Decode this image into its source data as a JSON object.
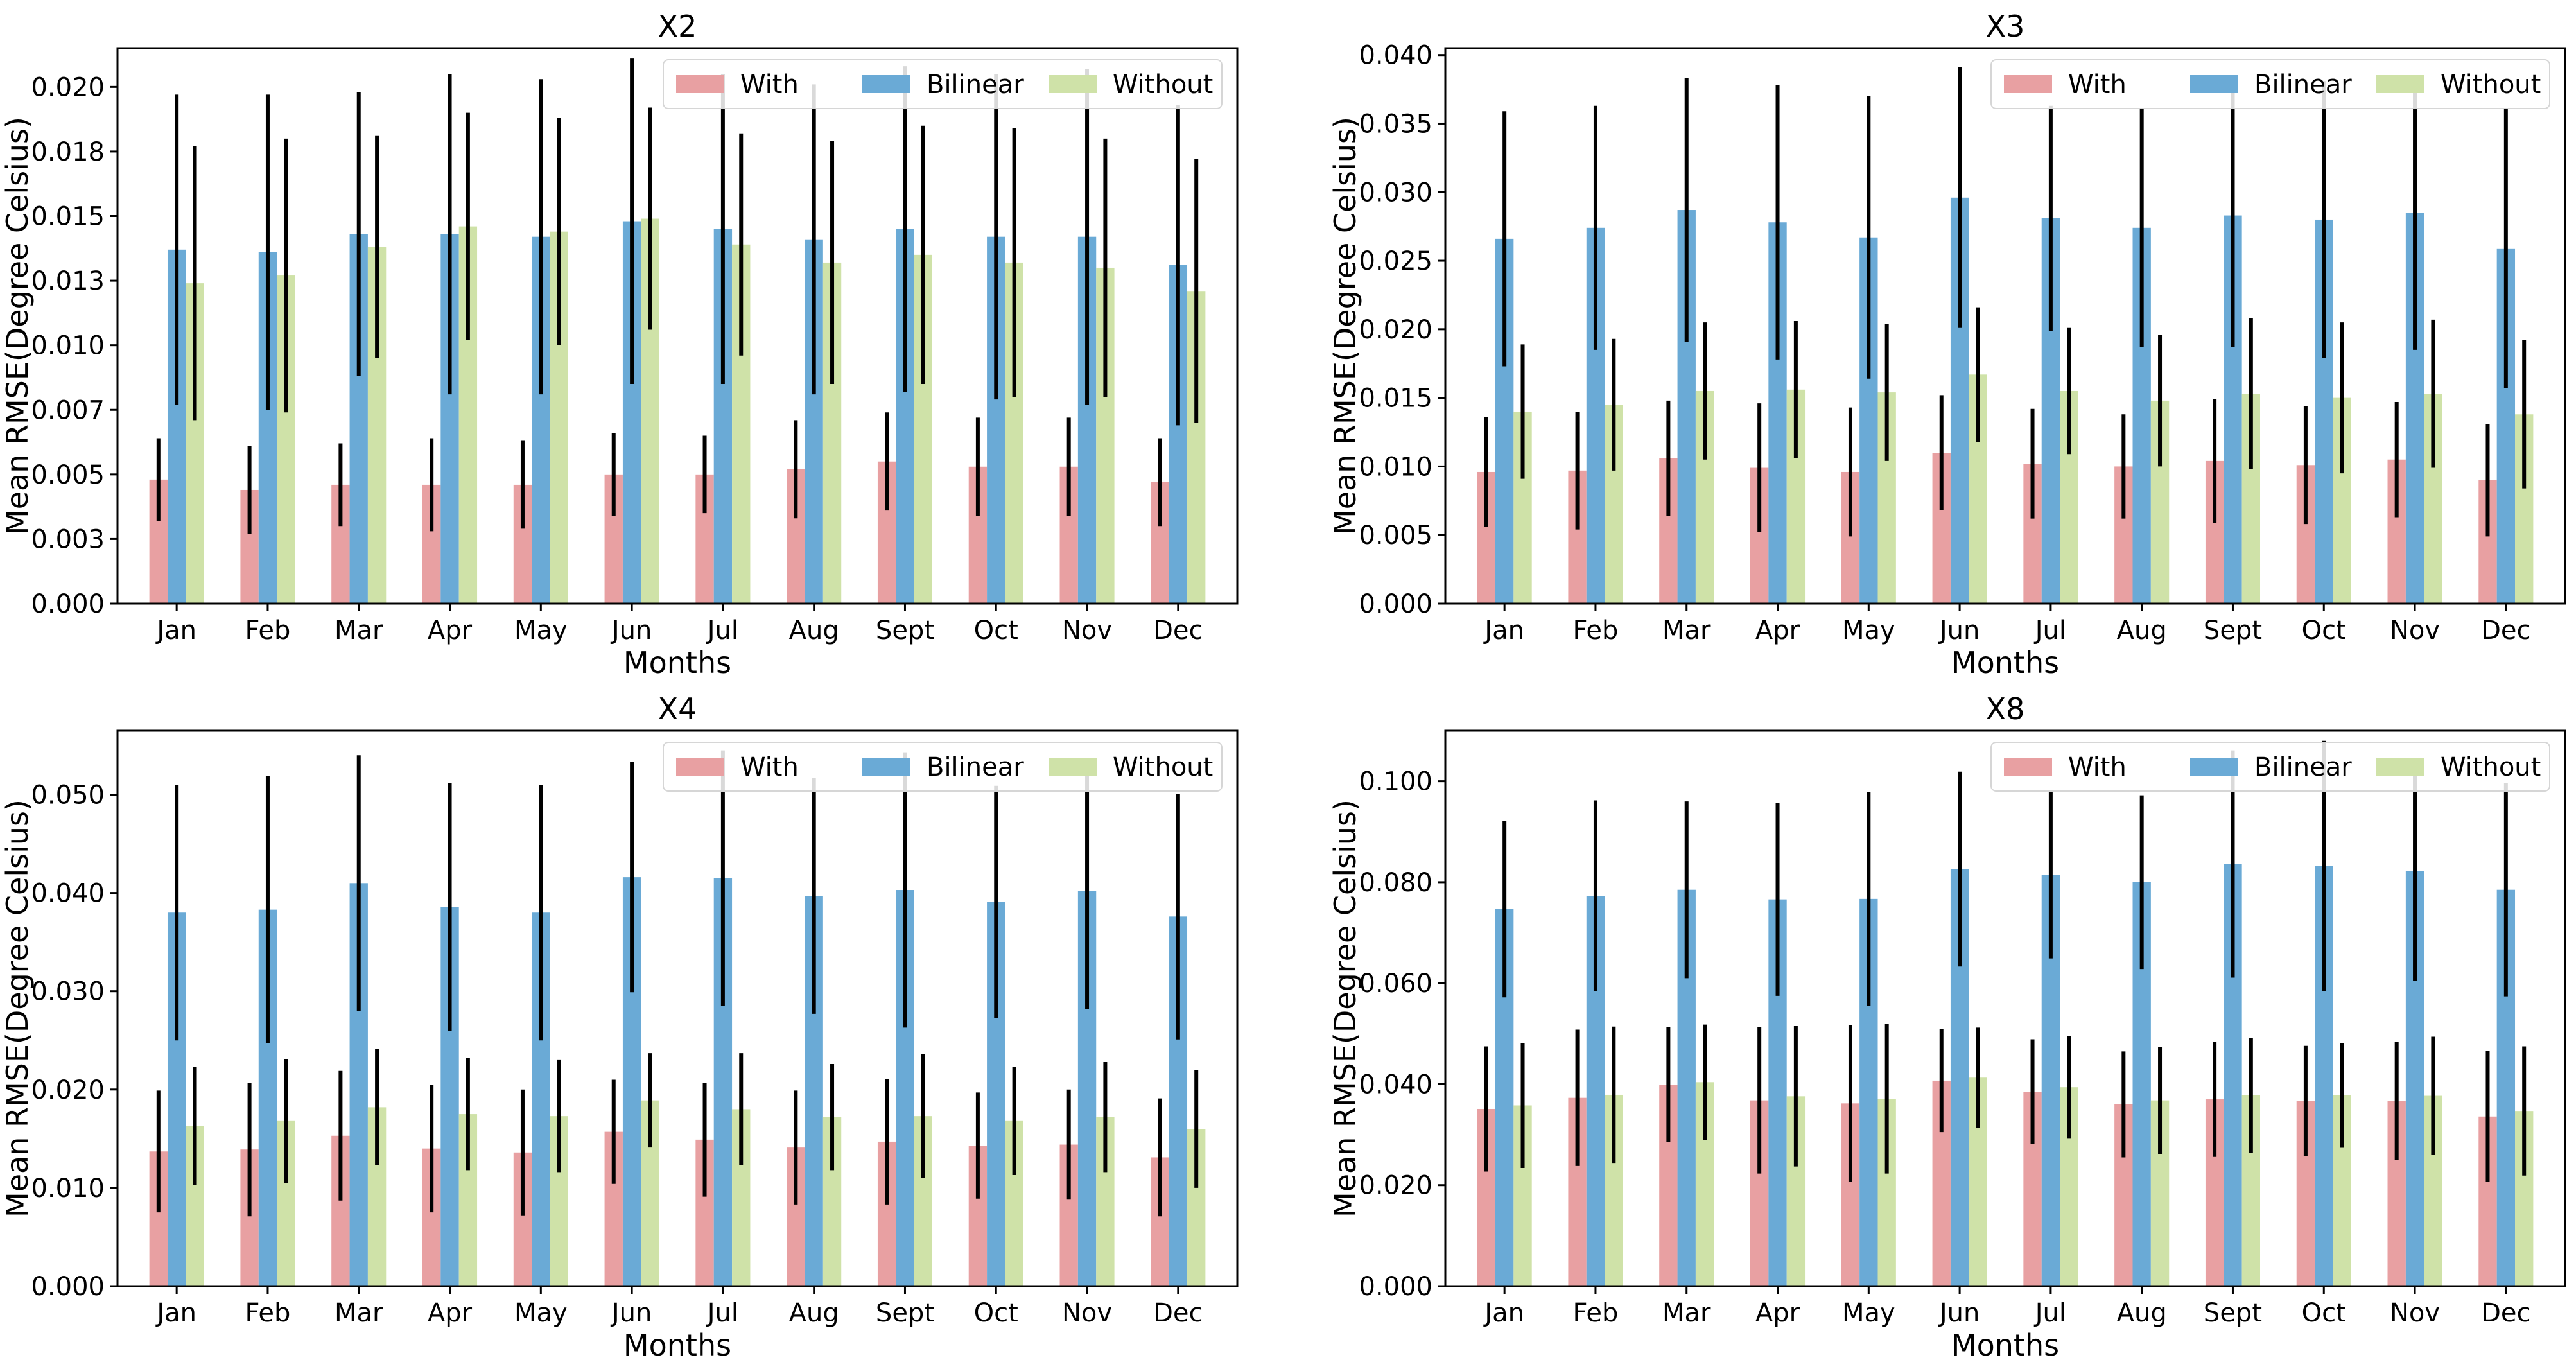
{
  "colors": {
    "With": "#e8a0a2",
    "Bilinear": "#6aaad6",
    "Without": "#cfe2a8",
    "errorbar": "#000000"
  },
  "chart_data": [
    {
      "type": "bar",
      "title": "X2",
      "xlabel": "Months",
      "ylabel": "Mean RMSE(Degree Celsius)",
      "ylim": [
        0,
        0.0215
      ],
      "yticks": [
        "0.000",
        "0.003",
        "0.005",
        "0.007",
        "0.010",
        "0.013",
        "0.015",
        "0.018",
        "0.020"
      ],
      "ytick_values": [
        0,
        0.0025,
        0.005,
        0.0075,
        0.01,
        0.0125,
        0.015,
        0.0175,
        0.02
      ],
      "legend_position": "top-right",
      "categories": [
        "Jan",
        "Feb",
        "Mar",
        "Apr",
        "May",
        "Jun",
        "Jul",
        "Aug",
        "Sept",
        "Oct",
        "Nov",
        "Dec"
      ],
      "series": [
        {
          "name": "With",
          "values": [
            0.0048,
            0.0044,
            0.0046,
            0.0046,
            0.0046,
            0.005,
            0.005,
            0.0052,
            0.0055,
            0.0053,
            0.0053,
            0.0047
          ],
          "errors": [
            0.0016,
            0.0017,
            0.0016,
            0.0018,
            0.0017,
            0.0016,
            0.0015,
            0.0019,
            0.0019,
            0.0019,
            0.0019,
            0.0017
          ]
        },
        {
          "name": "Bilinear",
          "values": [
            0.0137,
            0.0136,
            0.0143,
            0.0143,
            0.0142,
            0.0148,
            0.0145,
            0.0141,
            0.0145,
            0.0142,
            0.0142,
            0.0131
          ],
          "errors": [
            0.006,
            0.0061,
            0.0055,
            0.0062,
            0.0061,
            0.0063,
            0.006,
            0.006,
            0.0063,
            0.0063,
            0.0065,
            0.0062
          ]
        },
        {
          "name": "Without",
          "values": [
            0.0124,
            0.0127,
            0.0138,
            0.0146,
            0.0144,
            0.0149,
            0.0139,
            0.0132,
            0.0135,
            0.0132,
            0.013,
            0.0121
          ],
          "errors": [
            0.0053,
            0.0053,
            0.0043,
            0.0044,
            0.0044,
            0.0043,
            0.0043,
            0.0047,
            0.005,
            0.0052,
            0.005,
            0.0051
          ]
        }
      ]
    },
    {
      "type": "bar",
      "title": "X3",
      "xlabel": "Months",
      "ylabel": "Mean RMSE(Degree Celsius)",
      "ylim": [
        0,
        0.0405
      ],
      "yticks": [
        "0.000",
        "0.005",
        "0.010",
        "0.015",
        "0.020",
        "0.025",
        "0.030",
        "0.035",
        "0.040"
      ],
      "ytick_values": [
        0,
        0.005,
        0.01,
        0.015,
        0.02,
        0.025,
        0.03,
        0.035,
        0.04
      ],
      "legend_position": "top-right",
      "categories": [
        "Jan",
        "Feb",
        "Mar",
        "Apr",
        "May",
        "Jun",
        "Jul",
        "Aug",
        "Sept",
        "Oct",
        "Nov",
        "Dec"
      ],
      "series": [
        {
          "name": "With",
          "values": [
            0.0096,
            0.0097,
            0.0106,
            0.0099,
            0.0096,
            0.011,
            0.0102,
            0.01,
            0.0104,
            0.0101,
            0.0105,
            0.009
          ],
          "errors": [
            0.004,
            0.0043,
            0.0042,
            0.0047,
            0.0047,
            0.0042,
            0.004,
            0.0038,
            0.0045,
            0.0043,
            0.0042,
            0.0041
          ]
        },
        {
          "name": "Bilinear",
          "values": [
            0.0266,
            0.0274,
            0.0287,
            0.0278,
            0.0267,
            0.0296,
            0.0281,
            0.0274,
            0.0283,
            0.028,
            0.0285,
            0.0259
          ],
          "errors": [
            0.0093,
            0.0089,
            0.0096,
            0.01,
            0.0103,
            0.0095,
            0.0082,
            0.0087,
            0.0096,
            0.0101,
            0.01,
            0.0102
          ]
        },
        {
          "name": "Without",
          "values": [
            0.014,
            0.0145,
            0.0155,
            0.0156,
            0.0154,
            0.0167,
            0.0155,
            0.0148,
            0.0153,
            0.015,
            0.0153,
            0.0138
          ],
          "errors": [
            0.0049,
            0.0048,
            0.005,
            0.005,
            0.005,
            0.0049,
            0.0046,
            0.0048,
            0.0055,
            0.0055,
            0.0054,
            0.0054
          ]
        }
      ]
    },
    {
      "type": "bar",
      "title": "X4",
      "xlabel": "Months",
      "ylabel": "Mean RMSE(Degree Celsius)",
      "ylim": [
        0,
        0.0565
      ],
      "yticks": [
        "0.000",
        "0.010",
        "0.020",
        "0.030",
        "0.040",
        "0.050"
      ],
      "ytick_values": [
        0,
        0.01,
        0.02,
        0.03,
        0.04,
        0.05
      ],
      "legend_position": "top-right",
      "categories": [
        "Jan",
        "Feb",
        "Mar",
        "Apr",
        "May",
        "Jun",
        "Jul",
        "Aug",
        "Sept",
        "Oct",
        "Nov",
        "Dec"
      ],
      "series": [
        {
          "name": "With",
          "values": [
            0.0137,
            0.0139,
            0.0153,
            0.014,
            0.0136,
            0.0157,
            0.0149,
            0.0141,
            0.0147,
            0.0143,
            0.0144,
            0.0131
          ],
          "errors": [
            0.0062,
            0.0068,
            0.0066,
            0.0065,
            0.0064,
            0.0053,
            0.0058,
            0.0058,
            0.0064,
            0.0054,
            0.0056,
            0.006
          ]
        },
        {
          "name": "Bilinear",
          "values": [
            0.038,
            0.0383,
            0.041,
            0.0386,
            0.038,
            0.0416,
            0.0415,
            0.0397,
            0.0403,
            0.0391,
            0.0402,
            0.0376
          ],
          "errors": [
            0.013,
            0.0136,
            0.013,
            0.0126,
            0.013,
            0.0117,
            0.013,
            0.012,
            0.014,
            0.0118,
            0.012,
            0.0125
          ]
        },
        {
          "name": "Without",
          "values": [
            0.0163,
            0.0168,
            0.0182,
            0.0175,
            0.0173,
            0.0189,
            0.018,
            0.0172,
            0.0173,
            0.0168,
            0.0172,
            0.016
          ],
          "errors": [
            0.006,
            0.0063,
            0.0059,
            0.0057,
            0.0057,
            0.0048,
            0.0057,
            0.0054,
            0.0063,
            0.0055,
            0.0056,
            0.006
          ]
        }
      ]
    },
    {
      "type": "bar",
      "title": "X8",
      "xlabel": "Months",
      "ylabel": "Mean RMSE(Degree Celsius)",
      "ylim": [
        0,
        0.11
      ],
      "yticks": [
        "0.000",
        "0.020",
        "0.040",
        "0.060",
        "0.080",
        "0.100"
      ],
      "ytick_values": [
        0,
        0.02,
        0.04,
        0.06,
        0.08,
        0.1
      ],
      "legend_position": "top-right",
      "categories": [
        "Jan",
        "Feb",
        "Mar",
        "Apr",
        "May",
        "Jun",
        "Jul",
        "Aug",
        "Sept",
        "Oct",
        "Nov",
        "Dec"
      ],
      "series": [
        {
          "name": "With",
          "values": [
            0.0351,
            0.0373,
            0.0399,
            0.0368,
            0.0362,
            0.0407,
            0.0385,
            0.036,
            0.037,
            0.0367,
            0.0367,
            0.0336
          ],
          "errors": [
            0.0124,
            0.0135,
            0.0114,
            0.0145,
            0.0155,
            0.0102,
            0.0104,
            0.0105,
            0.0114,
            0.0109,
            0.0117,
            0.013
          ]
        },
        {
          "name": "Bilinear",
          "values": [
            0.0747,
            0.0773,
            0.0785,
            0.0766,
            0.0767,
            0.0826,
            0.0815,
            0.08,
            0.0836,
            0.0832,
            0.0822,
            0.0785
          ],
          "errors": [
            0.0175,
            0.0189,
            0.0175,
            0.0191,
            0.0212,
            0.0193,
            0.0166,
            0.0172,
            0.0225,
            0.0248,
            0.0218,
            0.0211
          ]
        },
        {
          "name": "Without",
          "values": [
            0.0358,
            0.0379,
            0.0404,
            0.0376,
            0.0371,
            0.0413,
            0.0394,
            0.0368,
            0.0378,
            0.0378,
            0.0377,
            0.0347
          ],
          "errors": [
            0.0124,
            0.0135,
            0.0114,
            0.0139,
            0.0148,
            0.0099,
            0.0102,
            0.0106,
            0.0114,
            0.0104,
            0.0117,
            0.0128
          ]
        }
      ]
    }
  ]
}
